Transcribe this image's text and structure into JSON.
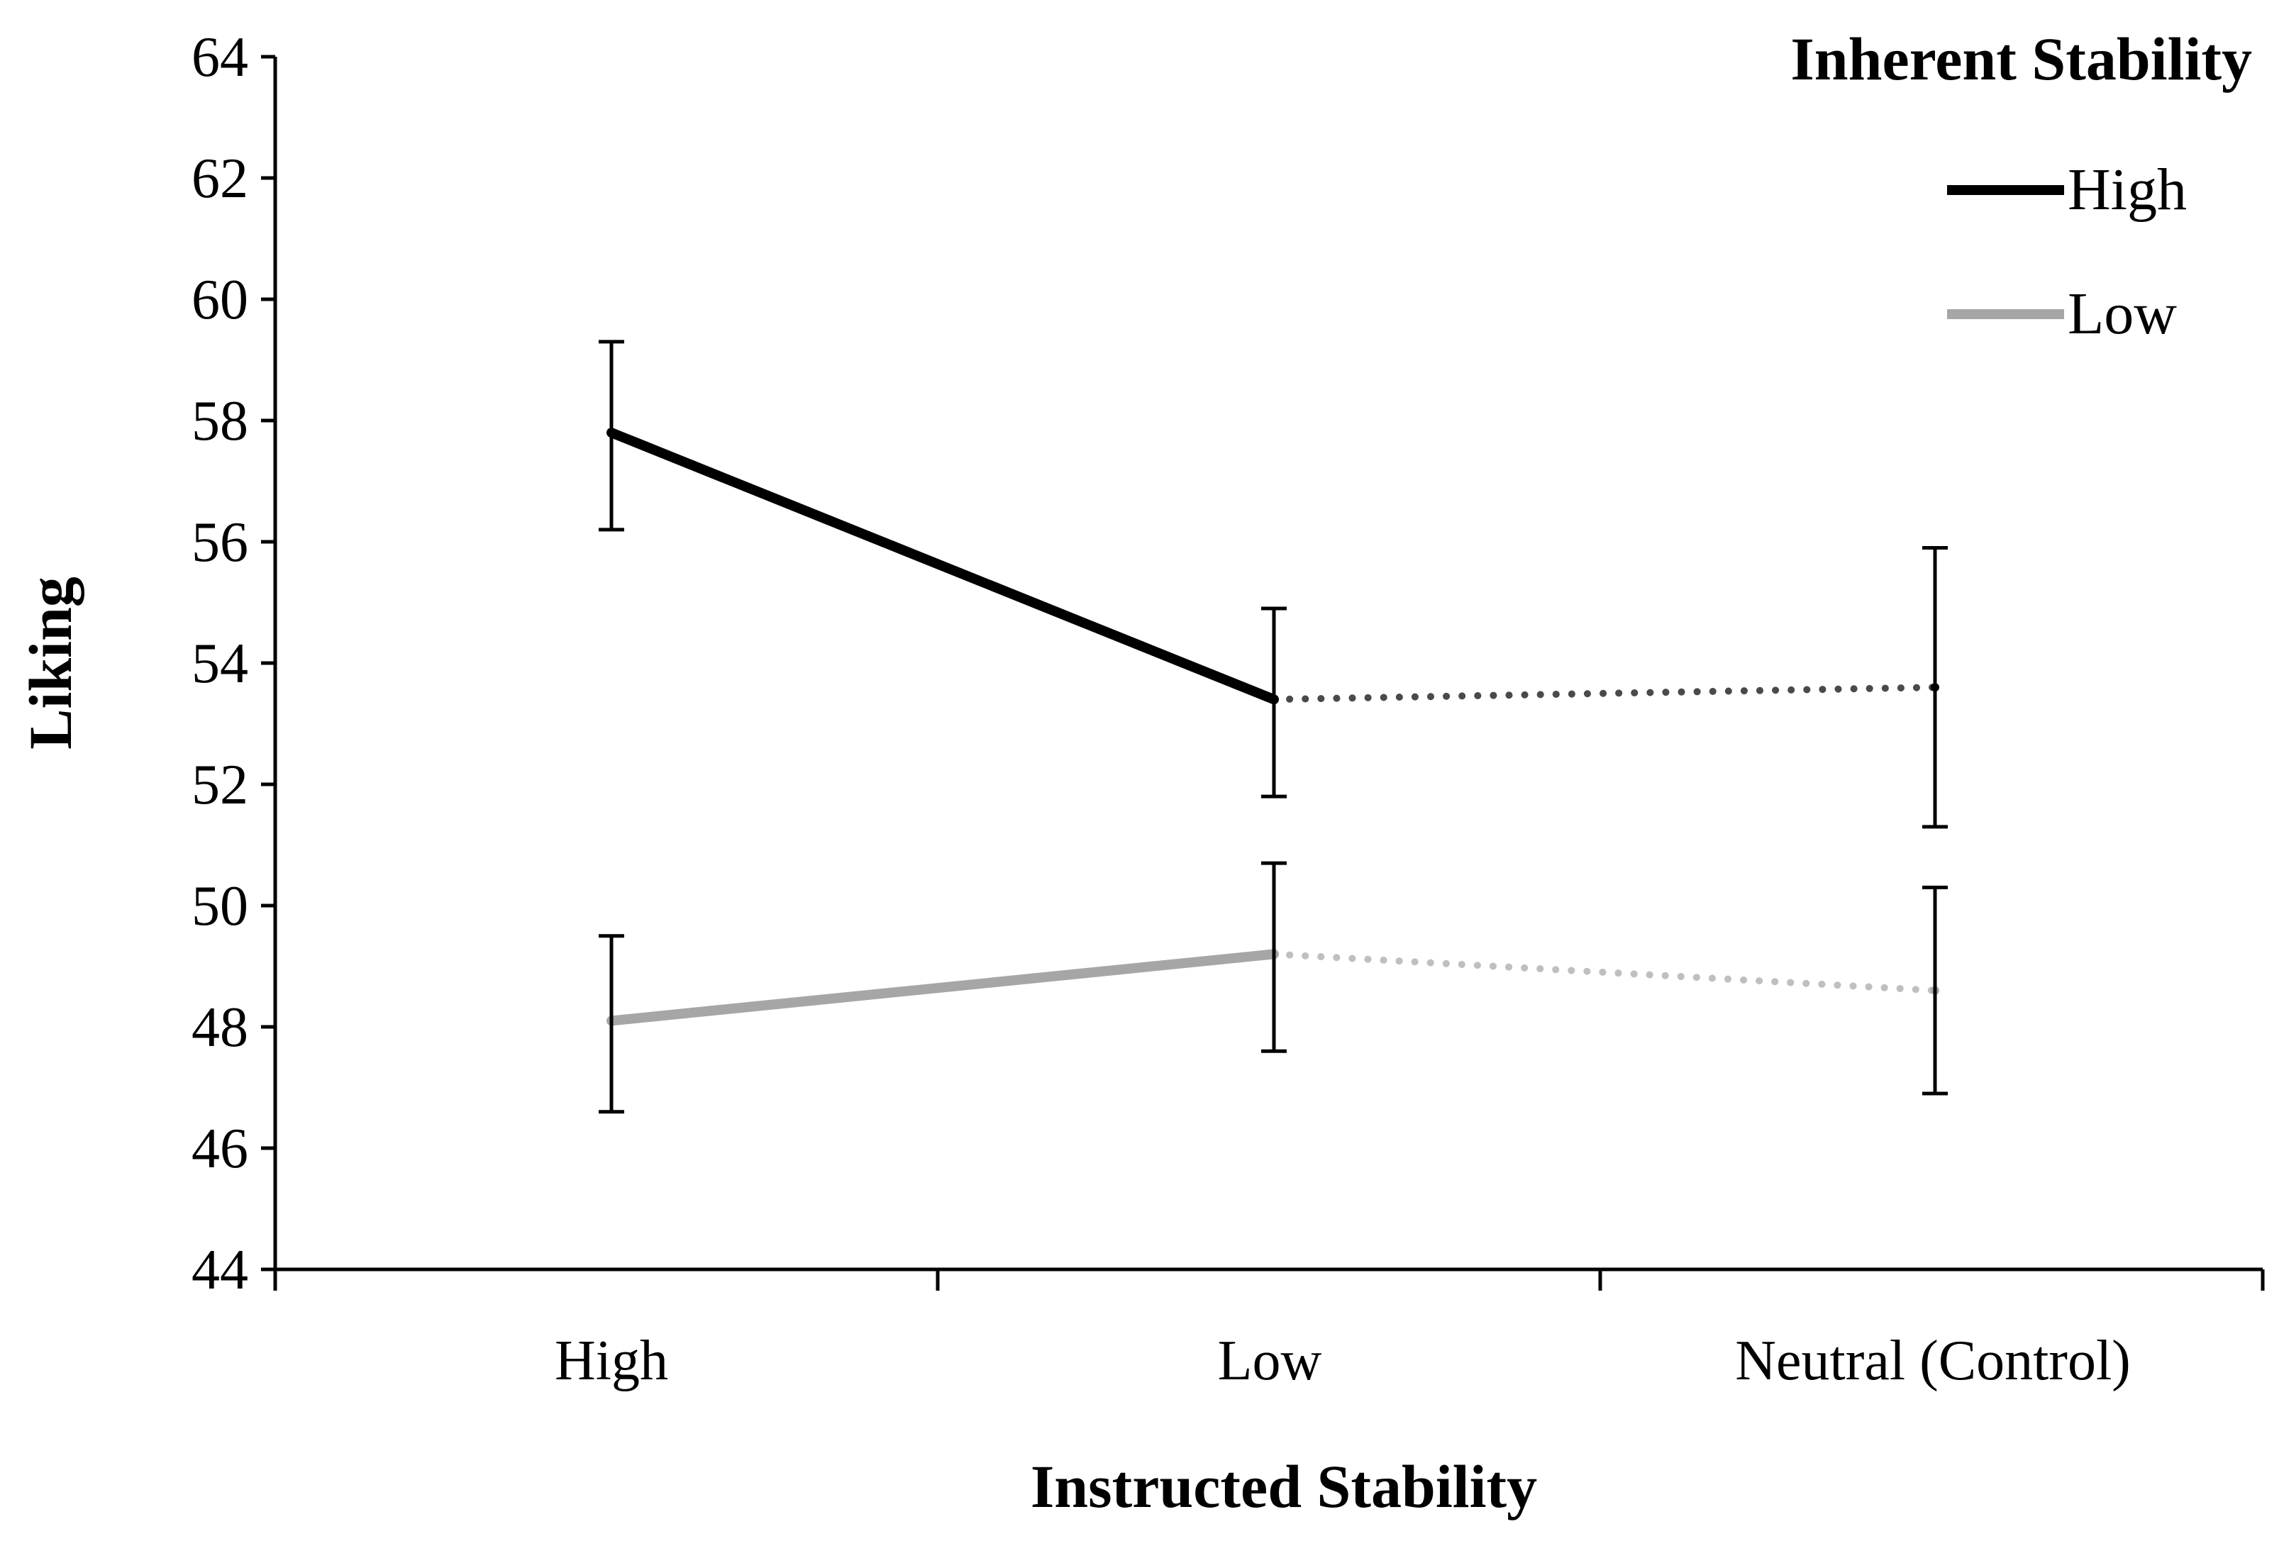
{
  "chart_data": {
    "type": "line",
    "title": "",
    "xlabel": "Instructed Stability",
    "ylabel": "Liking",
    "categories": [
      "High",
      "Low",
      "Neutral (Control)"
    ],
    "ylim": [
      44,
      64
    ],
    "yticks": [
      44,
      46,
      48,
      50,
      52,
      54,
      56,
      58,
      60,
      62,
      64
    ],
    "grid": false,
    "legend": {
      "title": "Inherent Stability",
      "placement": "top-right"
    },
    "series": [
      {
        "name": "High",
        "color": "#000000",
        "dotted_color": "#4a4a4a",
        "values": [
          57.8,
          53.4,
          53.6
        ],
        "error_low": [
          56.2,
          51.8,
          51.3
        ],
        "error_high": [
          59.3,
          54.9,
          55.9
        ]
      },
      {
        "name": "Low",
        "color": "#a6a6a6",
        "dotted_color": "#bfbfbf",
        "values": [
          48.1,
          49.2,
          48.6
        ],
        "error_low": [
          46.6,
          47.6,
          46.9
        ],
        "error_high": [
          49.5,
          50.7,
          50.3
        ]
      }
    ],
    "line_style_note": "solid between High and Low; dotted between Low and Neutral (Control)"
  }
}
